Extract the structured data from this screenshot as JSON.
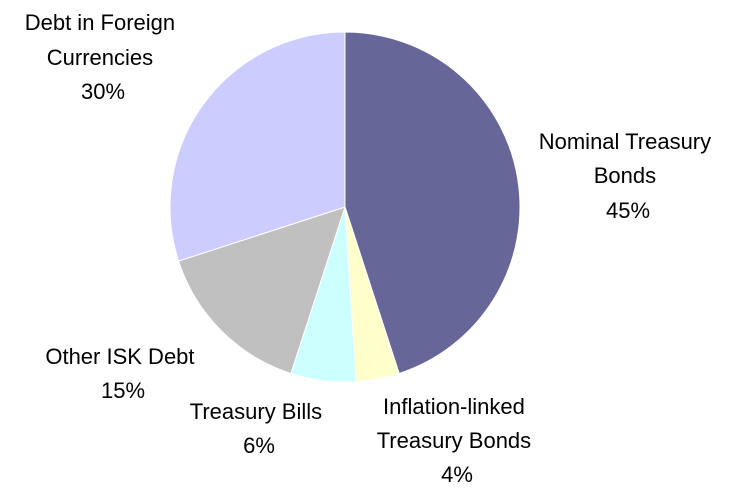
{
  "chart_data": {
    "type": "pie",
    "title": "",
    "slices": [
      {
        "label_lines": [
          "Nominal Treasury",
          "Bonds"
        ],
        "value": 45,
        "value_label": "45%",
        "color": "#666699"
      },
      {
        "label_lines": [
          "Inflation-linked",
          "Treasury Bonds"
        ],
        "value": 4,
        "value_label": "4%",
        "color": "#FFFFCC"
      },
      {
        "label_lines": [
          "Treasury Bills"
        ],
        "value": 6,
        "value_label": "6%",
        "color": "#CCFFFF"
      },
      {
        "label_lines": [
          "Other ISK Debt"
        ],
        "value": 15,
        "value_label": "15%",
        "color": "#C0C0C0"
      },
      {
        "label_lines": [
          "Debt in Foreign",
          "Currencies"
        ],
        "value": 30,
        "value_label": "30%",
        "color": "#CCCCFF"
      }
    ],
    "start_angle": "12 o'clock",
    "direction": "clockwise",
    "legend": "none"
  }
}
